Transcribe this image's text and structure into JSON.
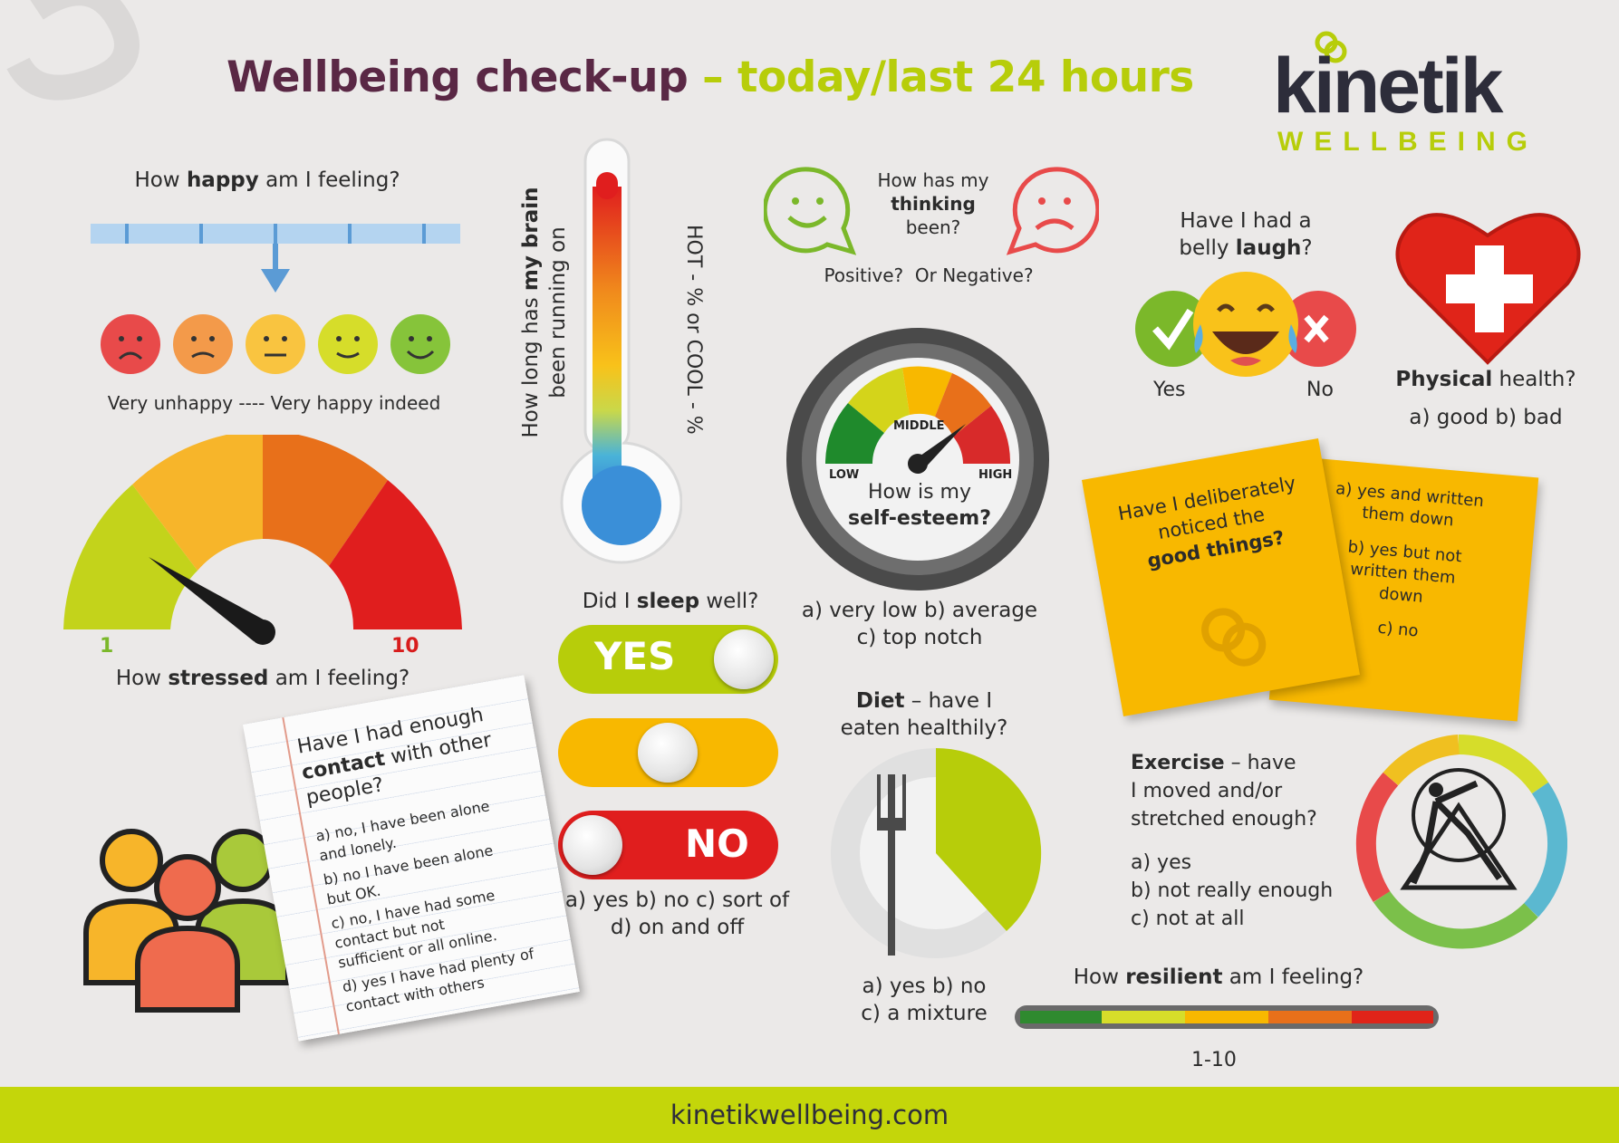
{
  "header": {
    "title_part1": "Wellbeing check-up",
    "title_part2": "– today/last 24 hours",
    "logo_name": "kinetik",
    "logo_sub": "WELLBEING"
  },
  "happy": {
    "q_pre": "How ",
    "q_bold": "happy",
    "q_post": " am I feeling?",
    "scale_caption": "Very unhappy ---- Very happy indeed",
    "faces": [
      "very-unhappy-face-icon",
      "unhappy-face-icon",
      "neutral-face-icon",
      "happy-face-icon",
      "very-happy-face-icon"
    ]
  },
  "stress": {
    "q_pre": "How ",
    "q_bold": "stressed",
    "q_post": " am I feeling?",
    "min_label": "1",
    "max_label": "10"
  },
  "brain": {
    "q_line1_pre": "How long has ",
    "q_line1_bold": "my brain",
    "q_line2": "been running on",
    "side_label": "HOT - % or COOL - %"
  },
  "sleep": {
    "q_pre": "Did I ",
    "q_bold": "sleep",
    "q_post": " well?",
    "toggle_yes": "YES",
    "toggle_no": "NO",
    "answers_line1": "a) yes b) no c) sort of",
    "answers_line2": "d) on and off"
  },
  "thinking": {
    "q_line1": "How has my",
    "q_bold": "thinking",
    "q_line3": "been?",
    "options": "Positive?  Or Negative?"
  },
  "self_esteem": {
    "label_low": "LOW",
    "label_middle": "MIDDLE",
    "label_high": "HIGH",
    "q_line1": "How is my",
    "q_bold": "self-esteem?",
    "answers_line1": "a) very low b) average",
    "answers_line2": "c) top notch"
  },
  "laugh": {
    "q_line1": "Have I had a",
    "q_line2_pre": "belly ",
    "q_bold": "laugh",
    "q_line2_post": "?",
    "yes": "Yes",
    "no": "No"
  },
  "physical": {
    "q_bold": "Physical",
    "q_post": " health?",
    "answers": "a) good b) bad"
  },
  "good_things": {
    "q_line1": "Have I deliberately",
    "q_line2": "noticed the",
    "q_bold": "good things?",
    "answer_a1": "a) yes and written",
    "answer_a2": "them down",
    "answer_b1": "b) yes but not",
    "answer_b2": "written them",
    "answer_b3": "down",
    "answer_c": "c) no"
  },
  "contact": {
    "q_line1": "Have I had enough",
    "q_bold": "contact",
    "q_line2_post": " with other",
    "q_line3": "people?",
    "a1": "a) no, I have been alone",
    "a2": "and lonely.",
    "b1": "b) no I have been alone",
    "b2": "but OK.",
    "c1": "c) no, I have had some",
    "c2": "contact but not",
    "c3": "sufficient or all online.",
    "d1": "d) yes I have had plenty of",
    "d2": "contact with others"
  },
  "diet": {
    "q_bold": "Diet",
    "q_post": " – have I",
    "q_line2": "eaten healthily?",
    "answers_line1": "a) yes b) no",
    "answers_line2": "c) a mixture"
  },
  "exercise": {
    "q_bold": "Exercise",
    "q_post": " – have",
    "q_line2": "I moved and/or",
    "q_line3": "stretched enough?",
    "a": "a) yes",
    "b": "b) not really enough",
    "c": "c) not at all"
  },
  "resilient": {
    "q_pre": "How ",
    "q_bold": "resilient",
    "q_post": " am I feeling?",
    "scale": "1-10"
  },
  "footer": {
    "url": "kinetikwellbeing.com"
  },
  "colors": {
    "purple": "#5a2845",
    "lime": "#b7cd0a",
    "red": "#e02419",
    "orange": "#f08a1c",
    "yellow": "#f8b800",
    "green": "#7bb82a"
  }
}
